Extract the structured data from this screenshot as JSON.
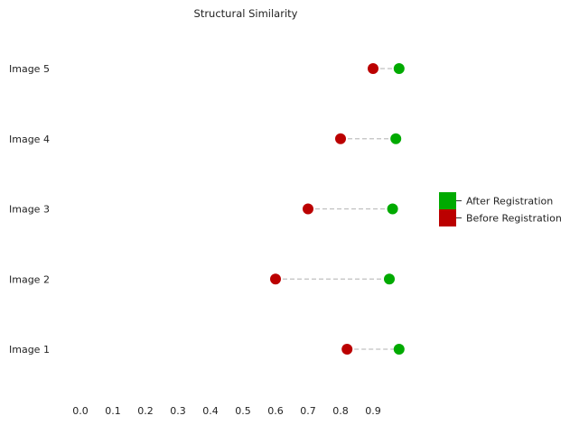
{
  "chart_data": {
    "type": "dumbbell",
    "title": "Structural Similarity",
    "xlabel": "",
    "ylabel": "",
    "xlim": [
      -0.03,
      1.0
    ],
    "xticks": [
      "0.0",
      "0.1",
      "0.2",
      "0.3",
      "0.4",
      "0.5",
      "0.6",
      "0.7",
      "0.8",
      "0.9"
    ],
    "categories": [
      "Image 1",
      "Image 2",
      "Image 3",
      "Image 4",
      "Image 5"
    ],
    "series": [
      {
        "name": "After Registration",
        "color": "#00aa00",
        "values": [
          0.98,
          0.95,
          0.96,
          0.97,
          0.98
        ]
      },
      {
        "name": "Before Registration",
        "color": "#bb0000",
        "values": [
          0.82,
          0.6,
          0.7,
          0.8,
          0.9
        ]
      }
    ],
    "connector_color": "#c0c0c0",
    "connector_style": "dashed",
    "grid": false,
    "legend_position": "right"
  }
}
